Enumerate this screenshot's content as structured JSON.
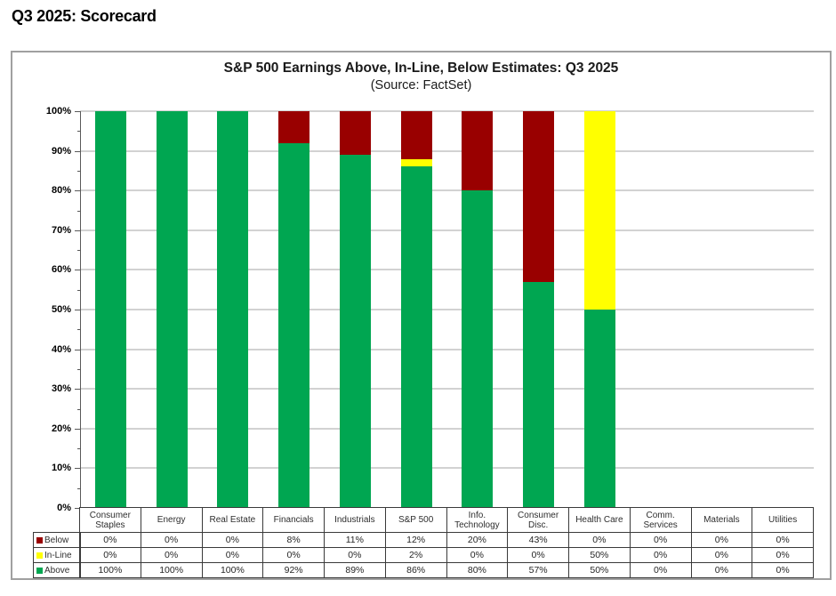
{
  "page": {
    "heading": "Q3 2025: Scorecard"
  },
  "chart": {
    "title": "S&P 500 Earnings Above, In-Line, Below Estimates: Q3 2025",
    "subtitle": "(Source: FactSet)"
  },
  "colors": {
    "above": "#00A651",
    "inline": "#FFFF00",
    "below": "#990000",
    "gridline": "#D2D2D2",
    "panel_border": "#A0A0A0"
  },
  "y_axis": {
    "tick_labels": [
      "100%",
      "90%",
      "80%",
      "70%",
      "60%",
      "50%",
      "40%",
      "30%",
      "20%",
      "10%",
      "0%"
    ]
  },
  "chart_data": {
    "type": "bar",
    "stacked": true,
    "title": "S&P 500 Earnings Above, In-Line, Below Estimates: Q3 2025",
    "subtitle": "(Source: FactSet)",
    "categories": [
      "Consumer Staples",
      "Energy",
      "Real Estate",
      "Financials",
      "Industrials",
      "S&P 500",
      "Info. Technology",
      "Consumer Disc.",
      "Health Care",
      "Comm. Services",
      "Materials",
      "Utilities"
    ],
    "series": [
      {
        "name": "Below",
        "color": "#990000",
        "values": [
          0,
          0,
          0,
          8,
          11,
          12,
          20,
          43,
          0,
          0,
          0,
          0
        ]
      },
      {
        "name": "In-Line",
        "color": "#FFFF00",
        "values": [
          0,
          0,
          0,
          0,
          0,
          2,
          0,
          0,
          50,
          0,
          0,
          0
        ]
      },
      {
        "name": "Above",
        "color": "#00A651",
        "values": [
          100,
          100,
          100,
          92,
          89,
          86,
          80,
          57,
          50,
          0,
          0,
          0
        ]
      }
    ],
    "ylim": [
      0,
      100
    ],
    "y_tick_step": 10,
    "grid": true,
    "legend_position": "table-left",
    "value_suffix": "%"
  }
}
